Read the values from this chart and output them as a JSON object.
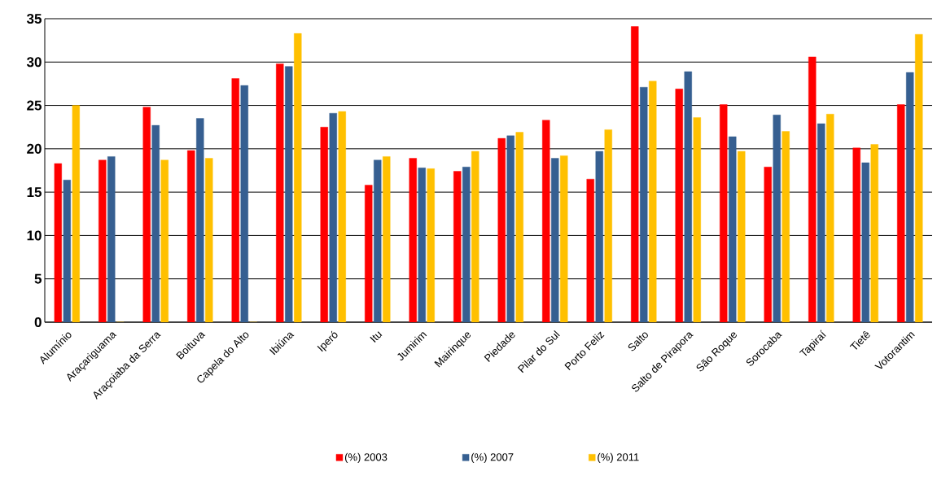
{
  "chart_data": {
    "type": "bar",
    "categories": [
      "Alumínio",
      "Araçariguama",
      "Araçoiaba da Serra",
      "Boituva",
      "Capela do Alto",
      "Ibiúna",
      "Iperó",
      "Itu",
      "Jumirim",
      "Mairinque",
      "Piedade",
      "Pilar do Sul",
      "Porto Feliz",
      "Salto",
      "Salto de Pirapora",
      "São Roque",
      "Sorocaba",
      "Tapiraí",
      "Tietê",
      "Votorantim"
    ],
    "series": [
      {
        "name": "(%) 2003",
        "color": "#ff0000",
        "values": [
          18.3,
          18.7,
          24.8,
          19.8,
          28.1,
          29.8,
          22.5,
          15.8,
          18.9,
          17.4,
          21.2,
          23.3,
          16.5,
          34.1,
          26.9,
          25.1,
          17.9,
          30.6,
          20.1,
          25.1
        ]
      },
      {
        "name": "(%) 2007",
        "color": "#365f91",
        "values": [
          16.4,
          19.1,
          22.7,
          23.5,
          27.3,
          29.5,
          24.1,
          18.7,
          17.8,
          17.9,
          21.5,
          18.9,
          19.7,
          27.1,
          28.9,
          21.4,
          23.9,
          22.9,
          18.4,
          28.8
        ]
      },
      {
        "name": "(%) 2011",
        "color": "#ffc000",
        "values": [
          25.0,
          0,
          18.7,
          18.9,
          0,
          33.3,
          24.3,
          19.1,
          17.7,
          19.7,
          21.9,
          19.2,
          22.2,
          27.8,
          23.6,
          19.7,
          22.0,
          24.0,
          20.5,
          33.2
        ]
      }
    ],
    "ylim": [
      0,
      35
    ],
    "yticks": [
      0,
      5,
      10,
      15,
      20,
      25,
      30,
      35
    ],
    "grid": "y",
    "legend": "bottom"
  }
}
